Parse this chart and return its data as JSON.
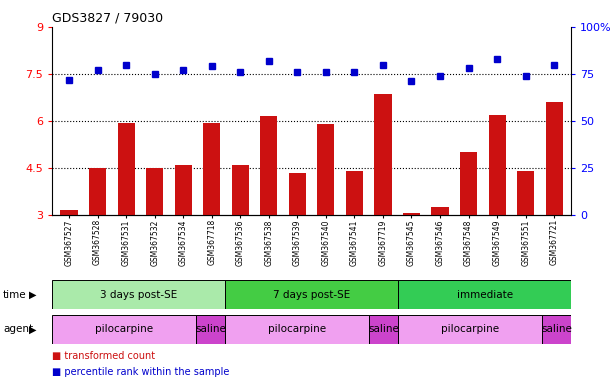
{
  "title": "GDS3827 / 79030",
  "samples": [
    "GSM367527",
    "GSM367528",
    "GSM367531",
    "GSM367532",
    "GSM367534",
    "GSM367718",
    "GSM367536",
    "GSM367538",
    "GSM367539",
    "GSM367540",
    "GSM367541",
    "GSM367719",
    "GSM367545",
    "GSM367546",
    "GSM367548",
    "GSM367549",
    "GSM367551",
    "GSM367721"
  ],
  "red_values": [
    3.15,
    4.5,
    5.95,
    4.5,
    4.6,
    5.95,
    4.6,
    6.15,
    4.35,
    5.9,
    4.4,
    6.85,
    3.05,
    3.25,
    5.0,
    6.2,
    4.4,
    6.6
  ],
  "blue_values": [
    72,
    77,
    80,
    75,
    77,
    79,
    76,
    82,
    76,
    76,
    76,
    80,
    71,
    74,
    78,
    83,
    74,
    80
  ],
  "ylim_left": [
    3,
    9
  ],
  "ylim_right": [
    0,
    100
  ],
  "yticks_left": [
    3,
    4.5,
    6,
    7.5,
    9
  ],
  "yticks_right": [
    0,
    25,
    50,
    75,
    100
  ],
  "ytick_labels_right": [
    "0",
    "25",
    "50",
    "75",
    "100%"
  ],
  "hlines": [
    4.5,
    6.0,
    7.5
  ],
  "time_groups": [
    {
      "label": "3 days post-SE",
      "start": 0,
      "end": 6,
      "color": "#aaeaaa"
    },
    {
      "label": "7 days post-SE",
      "start": 6,
      "end": 12,
      "color": "#44cc44"
    },
    {
      "label": "immediate",
      "start": 12,
      "end": 18,
      "color": "#33cc55"
    }
  ],
  "agent_groups": [
    {
      "label": "pilocarpine",
      "start": 0,
      "end": 5,
      "color": "#f0a0f0"
    },
    {
      "label": "saline",
      "start": 5,
      "end": 6,
      "color": "#cc44cc"
    },
    {
      "label": "pilocarpine",
      "start": 6,
      "end": 11,
      "color": "#f0a0f0"
    },
    {
      "label": "saline",
      "start": 11,
      "end": 12,
      "color": "#cc44cc"
    },
    {
      "label": "pilocarpine",
      "start": 12,
      "end": 17,
      "color": "#f0a0f0"
    },
    {
      "label": "saline",
      "start": 17,
      "end": 18,
      "color": "#cc44cc"
    }
  ],
  "bar_color": "#cc1111",
  "dot_color": "#0000cc",
  "legend_items": [
    {
      "color": "#cc1111",
      "label": "transformed count"
    },
    {
      "color": "#0000cc",
      "label": "percentile rank within the sample"
    }
  ]
}
